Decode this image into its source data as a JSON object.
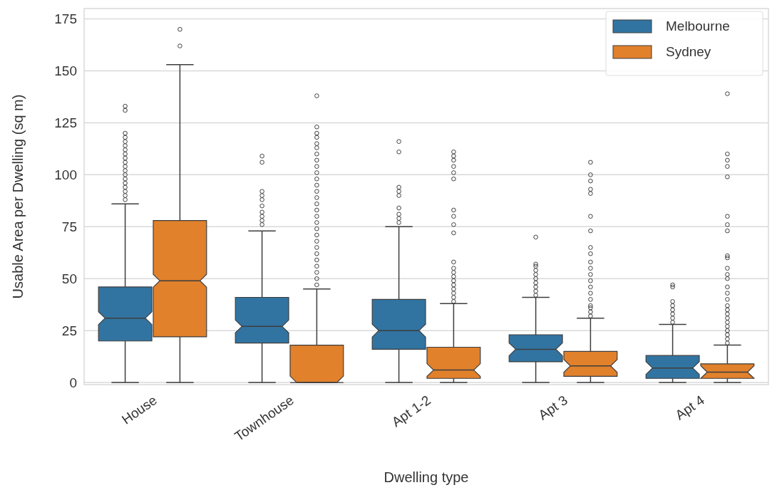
{
  "chart_data": {
    "type": "box",
    "xlabel": "Dwelling type",
    "ylabel": "Usable Area per Dwelling (sq m)",
    "categories": [
      "House",
      "Townhouse",
      "Apt 1-2",
      "Apt 3",
      "Apt 4"
    ],
    "ylim": [
      -1,
      180
    ],
    "yticks": [
      0,
      25,
      50,
      75,
      100,
      125,
      150,
      175
    ],
    "grid": "y",
    "legend": "top right",
    "series": [
      {
        "name": "Melbourne",
        "color": "#3274a1",
        "boxes": [
          {
            "low": 0,
            "q1": 20,
            "median": 31,
            "q3": 46,
            "high": 86,
            "outliers": [
              88,
              90,
              92,
              94,
              96,
              98,
              100,
              102,
              104,
              106,
              108,
              110,
              112,
              114,
              116,
              118,
              120,
              131,
              133
            ]
          },
          {
            "low": 0,
            "q1": 19,
            "median": 27,
            "q3": 41,
            "high": 73,
            "outliers": [
              76,
              78,
              80,
              82,
              85,
              88,
              90,
              92,
              106,
              109
            ]
          },
          {
            "low": 0,
            "q1": 16,
            "median": 25,
            "q3": 40,
            "high": 75,
            "outliers": [
              77,
              79,
              81,
              84,
              90,
              92,
              94,
              111,
              116
            ]
          },
          {
            "low": 0,
            "q1": 10,
            "median": 16,
            "q3": 23,
            "high": 41,
            "outliers": [
              42,
              44,
              46,
              48,
              50,
              52,
              54,
              56,
              57,
              70
            ]
          },
          {
            "low": 0,
            "q1": 2,
            "median": 7,
            "q3": 13,
            "high": 28,
            "outliers": [
              29,
              31,
              33,
              35,
              37,
              39,
              46,
              47
            ]
          }
        ]
      },
      {
        "name": "Sydney",
        "color": "#e1812c",
        "boxes": [
          {
            "low": 0,
            "q1": 22,
            "median": 49,
            "q3": 78,
            "high": 153,
            "outliers": [
              162,
              170
            ]
          },
          {
            "low": 0,
            "q1": 0,
            "median": 0,
            "q3": 18,
            "high": 45,
            "outliers": [
              47,
              50,
              53,
              56,
              59,
              62,
              65,
              68,
              71,
              74,
              77,
              80,
              83,
              86,
              89,
              92,
              95,
              98,
              101,
              104,
              107,
              110,
              113,
              115,
              118,
              120,
              123,
              138
            ]
          },
          {
            "low": 0,
            "q1": 2,
            "median": 6,
            "q3": 17,
            "high": 38,
            "outliers": [
              39,
              41,
              43,
              45,
              47,
              49,
              51,
              53,
              55,
              58,
              72,
              76,
              80,
              83,
              98,
              101,
              104,
              107,
              109,
              111
            ]
          },
          {
            "low": 0,
            "q1": 3,
            "median": 8,
            "q3": 15,
            "high": 31,
            "outliers": [
              32,
              34,
              36,
              37,
              40,
              43,
              46,
              49,
              52,
              55,
              58,
              62,
              65,
              73,
              80,
              91,
              93,
              97,
              100,
              106
            ]
          },
          {
            "low": 0,
            "q1": 2,
            "median": 5,
            "q3": 9,
            "high": 18,
            "outliers": [
              19,
              21,
              23,
              25,
              27,
              29,
              31,
              33,
              35,
              37,
              40,
              43,
              46,
              50,
              52,
              55,
              60,
              61,
              73,
              76,
              80,
              99,
              104,
              107,
              110,
              139
            ]
          }
        ]
      }
    ]
  }
}
